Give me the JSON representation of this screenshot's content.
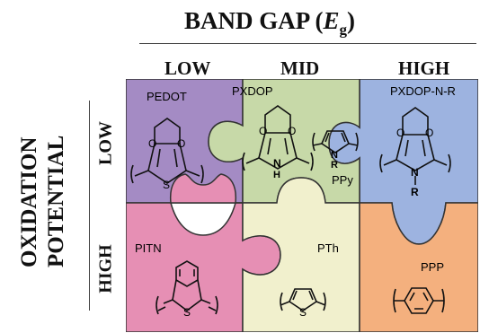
{
  "header": {
    "title_main": "BAND GAP (",
    "title_symbol": "E",
    "title_sub": "g",
    "title_close": ")"
  },
  "columns": [
    "LOW",
    "MID",
    "HIGH"
  ],
  "side_axis": {
    "title_line1": "OXIDATION",
    "title_line2": "POTENTIAL",
    "rows": [
      "LOW",
      "HIGH"
    ]
  },
  "pieces": {
    "pedot": {
      "label": "PEDOT",
      "color": "#a48bc4",
      "o1": "O",
      "o2": "O",
      "s": "S"
    },
    "pxdop": {
      "label": "PXDOP",
      "color": "#c7d9a8",
      "o1": "O",
      "o2": "O",
      "nh": "N",
      "h": "H"
    },
    "ppy": {
      "label": "PPy",
      "n": "N",
      "r": "R"
    },
    "pxdopnr": {
      "label": "PXDOP-N-R",
      "color": "#9db3e0",
      "o1": "O",
      "o2": "O",
      "n": "N",
      "r": "R"
    },
    "pitn": {
      "label": "PITN",
      "color": "#e68fb4",
      "s": "S"
    },
    "pth": {
      "label": "PTh",
      "color": "#f1f0cd",
      "s": "S"
    },
    "ppp": {
      "label": "PPP",
      "color": "#f4b07e"
    }
  }
}
